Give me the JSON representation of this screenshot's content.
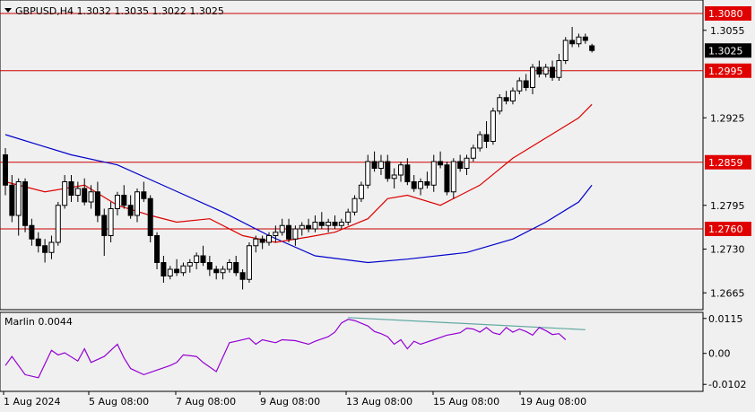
{
  "header": {
    "symbol_line": "GBPUSD,H4  1.3032 1.3035 1.3022 1.3025"
  },
  "indicator": {
    "label": "Marlin 0.0044"
  },
  "chart_data": {
    "type": "candlestick",
    "symbol": "GBPUSD",
    "timeframe": "H4",
    "ohlc_current": {
      "open": 1.3032,
      "high": 1.3035,
      "low": 1.3022,
      "close": 1.3025
    },
    "price_axis_ticks": [
      "1.3055",
      "1.2925",
      "1.2795",
      "1.2730",
      "1.2665"
    ],
    "price_ylim": [
      1.264,
      1.31
    ],
    "current_price_label": "1.3025",
    "horizontal_levels": [
      {
        "label": "1.3080",
        "value": 1.308
      },
      {
        "label": "1.2995",
        "value": 1.2995
      },
      {
        "label": "1.2859",
        "value": 1.2859
      },
      {
        "label": "1.2760",
        "value": 1.276
      }
    ],
    "time_labels": [
      "1 Aug 2024",
      "5 Aug 08:00",
      "7 Aug 08:00",
      "9 Aug 08:00",
      "13 Aug 08:00",
      "15 Aug 08:00",
      "19 Aug 08:00"
    ],
    "candles": [
      [
        1.287,
        1.288,
        1.281,
        1.2825
      ],
      [
        1.2825,
        1.284,
        1.277,
        1.278
      ],
      [
        1.278,
        1.2835,
        1.275,
        1.283
      ],
      [
        1.283,
        1.2835,
        1.2755,
        1.2765
      ],
      [
        1.2765,
        1.2775,
        1.2735,
        1.2745
      ],
      [
        1.2745,
        1.2755,
        1.2725,
        1.2735
      ],
      [
        1.2735,
        1.2745,
        1.271,
        1.2725
      ],
      [
        1.2725,
        1.275,
        1.2715,
        1.274
      ],
      [
        1.274,
        1.28,
        1.2735,
        1.2795
      ],
      [
        1.2795,
        1.284,
        1.279,
        1.283
      ],
      [
        1.283,
        1.284,
        1.28,
        1.281
      ],
      [
        1.281,
        1.283,
        1.28,
        1.282
      ],
      [
        1.282,
        1.2835,
        1.2795,
        1.28
      ],
      [
        1.28,
        1.2825,
        1.279,
        1.2815
      ],
      [
        1.2815,
        1.283,
        1.277,
        1.278
      ],
      [
        1.278,
        1.279,
        1.272,
        1.275
      ],
      [
        1.275,
        1.28,
        1.274,
        1.279
      ],
      [
        1.279,
        1.2815,
        1.278,
        1.281
      ],
      [
        1.281,
        1.2825,
        1.279,
        1.2795
      ],
      [
        1.2795,
        1.281,
        1.2775,
        1.278
      ],
      [
        1.278,
        1.282,
        1.277,
        1.2815
      ],
      [
        1.2815,
        1.283,
        1.28,
        1.2805
      ],
      [
        1.2805,
        1.281,
        1.274,
        1.275
      ],
      [
        1.275,
        1.2755,
        1.27,
        1.271
      ],
      [
        1.271,
        1.272,
        1.268,
        1.269
      ],
      [
        1.269,
        1.2705,
        1.2685,
        1.27
      ],
      [
        1.27,
        1.2715,
        1.269,
        1.2695
      ],
      [
        1.2695,
        1.271,
        1.269,
        1.2705
      ],
      [
        1.2705,
        1.2715,
        1.2695,
        1.271
      ],
      [
        1.271,
        1.2725,
        1.27,
        1.272
      ],
      [
        1.272,
        1.2735,
        1.2705,
        1.271
      ],
      [
        1.271,
        1.272,
        1.269,
        1.27
      ],
      [
        1.27,
        1.2705,
        1.2685,
        1.2695
      ],
      [
        1.2695,
        1.2705,
        1.2685,
        1.27
      ],
      [
        1.27,
        1.2715,
        1.2695,
        1.271
      ],
      [
        1.271,
        1.272,
        1.269,
        1.2695
      ],
      [
        1.2695,
        1.27,
        1.267,
        1.2685
      ],
      [
        1.2685,
        1.274,
        1.268,
        1.2735
      ],
      [
        1.2735,
        1.275,
        1.2725,
        1.2745
      ],
      [
        1.2745,
        1.275,
        1.273,
        1.274
      ],
      [
        1.274,
        1.2755,
        1.2735,
        1.275
      ],
      [
        1.275,
        1.2765,
        1.274,
        1.2755
      ],
      [
        1.2755,
        1.2775,
        1.275,
        1.2765
      ],
      [
        1.2765,
        1.2775,
        1.274,
        1.2745
      ],
      [
        1.2745,
        1.2765,
        1.2735,
        1.276
      ],
      [
        1.276,
        1.277,
        1.275,
        1.2765
      ],
      [
        1.2765,
        1.2775,
        1.2755,
        1.276
      ],
      [
        1.276,
        1.278,
        1.2755,
        1.277
      ],
      [
        1.277,
        1.2785,
        1.276,
        1.2765
      ],
      [
        1.2765,
        1.2775,
        1.2755,
        1.277
      ],
      [
        1.277,
        1.278,
        1.276,
        1.2765
      ],
      [
        1.2765,
        1.2775,
        1.276,
        1.277
      ],
      [
        1.277,
        1.279,
        1.2765,
        1.2785
      ],
      [
        1.2785,
        1.281,
        1.278,
        1.2805
      ],
      [
        1.2805,
        1.283,
        1.28,
        1.2825
      ],
      [
        1.2825,
        1.287,
        1.282,
        1.286
      ],
      [
        1.286,
        1.2875,
        1.2845,
        1.285
      ],
      [
        1.285,
        1.287,
        1.284,
        1.286
      ],
      [
        1.286,
        1.287,
        1.283,
        1.2835
      ],
      [
        1.2835,
        1.285,
        1.282,
        1.284
      ],
      [
        1.284,
        1.286,
        1.283,
        1.2855
      ],
      [
        1.2855,
        1.2865,
        1.2825,
        1.283
      ],
      [
        1.283,
        1.284,
        1.2815,
        1.282
      ],
      [
        1.282,
        1.2835,
        1.281,
        1.283
      ],
      [
        1.283,
        1.2845,
        1.282,
        1.2825
      ],
      [
        1.2825,
        1.287,
        1.2815,
        1.286
      ],
      [
        1.286,
        1.2875,
        1.285,
        1.2855
      ],
      [
        1.2855,
        1.286,
        1.281,
        1.2815
      ],
      [
        1.2815,
        1.2865,
        1.2805,
        1.286
      ],
      [
        1.286,
        1.287,
        1.2845,
        1.285
      ],
      [
        1.285,
        1.287,
        1.284,
        1.2865
      ],
      [
        1.2865,
        1.2885,
        1.286,
        1.288
      ],
      [
        1.288,
        1.2905,
        1.2875,
        1.29
      ],
      [
        1.29,
        1.292,
        1.288,
        1.289
      ],
      [
        1.289,
        1.294,
        1.2885,
        1.2935
      ],
      [
        1.2935,
        1.296,
        1.293,
        1.2955
      ],
      [
        1.2955,
        1.2965,
        1.2945,
        1.295
      ],
      [
        1.295,
        1.297,
        1.2945,
        1.2965
      ],
      [
        1.2965,
        1.2985,
        1.296,
        1.298
      ],
      [
        1.298,
        1.299,
        1.2965,
        1.297
      ],
      [
        1.297,
        1.3005,
        1.296,
        1.3
      ],
      [
        1.3,
        1.301,
        1.2985,
        1.299
      ],
      [
        1.299,
        1.3005,
        1.2985,
        1.3
      ],
      [
        1.3,
        1.301,
        1.298,
        1.2985
      ],
      [
        1.2985,
        1.302,
        1.298,
        1.301
      ],
      [
        1.301,
        1.3045,
        1.3005,
        1.304
      ],
      [
        1.304,
        1.306,
        1.303,
        1.3035
      ],
      [
        1.3035,
        1.305,
        1.303,
        1.3045
      ],
      [
        1.3045,
        1.305,
        1.3035,
        1.304
      ],
      [
        1.3032,
        1.3035,
        1.3022,
        1.3025
      ]
    ],
    "ma_fast": {
      "color": "#dd0000",
      "points": [
        [
          0,
          1.283
        ],
        [
          6,
          1.2815
        ],
        [
          12,
          1.2825
        ],
        [
          17,
          1.2795
        ],
        [
          22,
          1.278
        ],
        [
          26,
          1.277
        ],
        [
          31,
          1.2775
        ],
        [
          36,
          1.275
        ],
        [
          41,
          1.274
        ],
        [
          46,
          1.2748
        ],
        [
          50,
          1.2755
        ],
        [
          55,
          1.2775
        ],
        [
          58,
          1.2805
        ],
        [
          61,
          1.281
        ],
        [
          66,
          1.2795
        ],
        [
          72,
          1.2825
        ],
        [
          77,
          1.2865
        ],
        [
          82,
          1.2895
        ],
        [
          87,
          1.2925
        ],
        [
          89,
          1.2945
        ]
      ]
    },
    "ma_slow": {
      "color": "#0000cc",
      "points": [
        [
          0,
          1.29
        ],
        [
          5,
          1.2885
        ],
        [
          10,
          1.287
        ],
        [
          17,
          1.2855
        ],
        [
          25,
          1.282
        ],
        [
          33,
          1.2785
        ],
        [
          40,
          1.275
        ],
        [
          47,
          1.272
        ],
        [
          55,
          1.271
        ],
        [
          61,
          1.2715
        ],
        [
          70,
          1.2725
        ],
        [
          77,
          1.2745
        ],
        [
          82,
          1.277
        ],
        [
          87,
          1.28
        ],
        [
          89,
          1.2825
        ]
      ]
    },
    "indicator": {
      "name": "Marlin",
      "value": 0.0044,
      "line_color": "#9400d3",
      "axis_ticks": [
        "0.0115",
        "0.00",
        "-0.0102"
      ],
      "ylim": [
        -0.0125,
        0.0135
      ],
      "points": [
        [
          0,
          -0.004
        ],
        [
          1,
          -0.001
        ],
        [
          3,
          -0.007
        ],
        [
          5,
          -0.008
        ],
        [
          7,
          0.001
        ],
        [
          8,
          -0.0005
        ],
        [
          9,
          0.0002
        ],
        [
          11,
          -0.0025
        ],
        [
          12,
          0.0015
        ],
        [
          13,
          -0.003
        ],
        [
          15,
          -0.001
        ],
        [
          17,
          0.003
        ],
        [
          18,
          -0.0015
        ],
        [
          19,
          -0.005
        ],
        [
          21,
          -0.007
        ],
        [
          23,
          -0.0055
        ],
        [
          25,
          -0.004
        ],
        [
          26,
          -0.003
        ],
        [
          27,
          -0.0005
        ],
        [
          29,
          -0.001
        ],
        [
          30,
          -0.003
        ],
        [
          32,
          -0.006
        ],
        [
          34,
          0.0035
        ],
        [
          35,
          0.004
        ],
        [
          37,
          0.005
        ],
        [
          38,
          0.003
        ],
        [
          39,
          0.0045
        ],
        [
          41,
          0.0035
        ],
        [
          42,
          0.0045
        ],
        [
          44,
          0.0042
        ],
        [
          46,
          0.003
        ],
        [
          47,
          0.004
        ],
        [
          49,
          0.0055
        ],
        [
          50,
          0.007
        ],
        [
          51,
          0.01
        ],
        [
          52,
          0.0112
        ],
        [
          53,
          0.0108
        ],
        [
          55,
          0.009
        ],
        [
          56,
          0.0072
        ],
        [
          57,
          0.0065
        ],
        [
          58,
          0.0055
        ],
        [
          59,
          0.003
        ],
        [
          60,
          0.0045
        ],
        [
          61,
          0.0015
        ],
        [
          62,
          0.004
        ],
        [
          63,
          0.003
        ],
        [
          65,
          0.0045
        ],
        [
          67,
          0.006
        ],
        [
          69,
          0.0068
        ],
        [
          70,
          0.0083
        ],
        [
          71,
          0.008
        ],
        [
          72,
          0.007
        ],
        [
          73,
          0.0085
        ],
        [
          74,
          0.0068
        ],
        [
          75,
          0.0062
        ],
        [
          76,
          0.0085
        ],
        [
          77,
          0.007
        ],
        [
          78,
          0.008
        ],
        [
          79,
          0.0072
        ],
        [
          80,
          0.006
        ],
        [
          81,
          0.0085
        ],
        [
          82,
          0.0075
        ],
        [
          83,
          0.0062
        ],
        [
          84,
          0.0065
        ],
        [
          85,
          0.0045
        ]
      ]
    },
    "divergence_line": {
      "color": "#5fa8a0",
      "points": [
        [
          52,
          0.0118
        ],
        [
          88,
          0.0078
        ]
      ]
    }
  }
}
